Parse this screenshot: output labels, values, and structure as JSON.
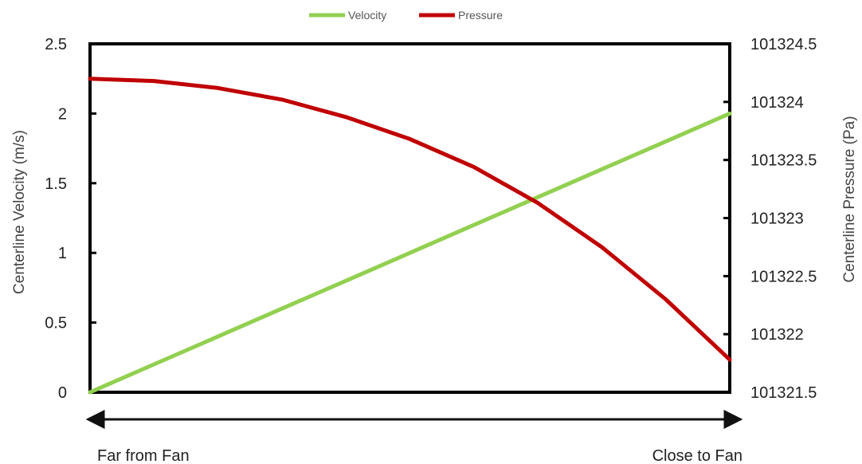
{
  "chart_data": {
    "type": "line",
    "legend_position": "top-center",
    "grid": false,
    "ylabel_left": "Centerline Velocity (m/s)",
    "ylabel_right": "Centerline Pressure (Pa)",
    "ylim_left": [
      0,
      2.5
    ],
    "ylim_right": [
      101321.5,
      101324.5
    ],
    "yticks_left": [
      "0",
      "0.5",
      "1",
      "1.5",
      "2",
      "2.5"
    ],
    "yticks_right": [
      "101321.5",
      "101322",
      "101322.5",
      "101323",
      "101323.5",
      "101324",
      "101324.5"
    ],
    "x_axis_arrow": {
      "left_label": "Far from Fan",
      "right_label": "Close to Fan"
    },
    "x": [
      0,
      0.1,
      0.2,
      0.3,
      0.4,
      0.5,
      0.6,
      0.7,
      0.8,
      0.9,
      1.0
    ],
    "series": [
      {
        "name": "Velocity",
        "axis": "left",
        "color": "#92d050",
        "values": [
          0,
          0.2,
          0.4,
          0.6,
          0.8,
          1.0,
          1.2,
          1.4,
          1.6,
          1.8,
          2.0
        ]
      },
      {
        "name": "Pressure",
        "axis": "right",
        "color": "#c00000",
        "values": [
          101324.2,
          101324.18,
          101324.12,
          101324.02,
          101323.87,
          101323.68,
          101323.44,
          101323.13,
          101322.75,
          101322.3,
          101321.78
        ]
      }
    ]
  }
}
